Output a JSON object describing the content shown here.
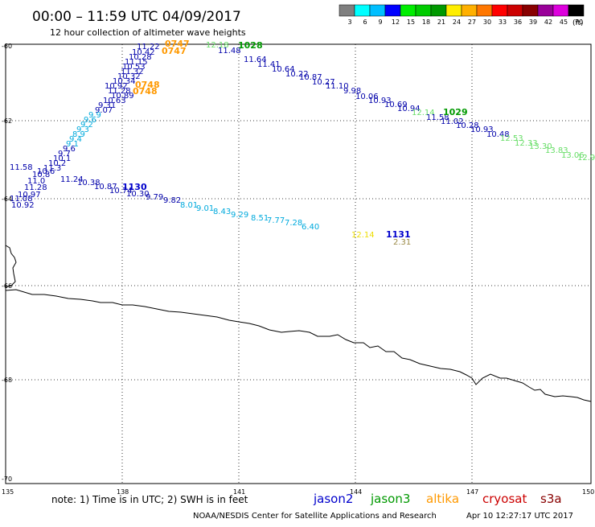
{
  "header": {
    "title": "00:00 – 11:59 UTC 04/09/2017",
    "subtitle": "12 hour collection of altimeter wave heights"
  },
  "colorbar": {
    "unit": "(ft)",
    "colors": [
      "#7f7f7f",
      "#00ffff",
      "#00bfff",
      "#0000ff",
      "#00ee00",
      "#00cc00",
      "#009900",
      "#ffee00",
      "#ffb000",
      "#ff7700",
      "#ff0000",
      "#cc0000",
      "#880000",
      "#990099",
      "#dd00dd",
      "#000000"
    ],
    "labels": [
      "3",
      "6",
      "9",
      "12",
      "15",
      "18",
      "21",
      "24",
      "27",
      "30",
      "33",
      "36",
      "39",
      "42",
      "45",
      "70"
    ]
  },
  "axes": {
    "x_ticks": [
      "135",
      "138",
      "141",
      "144",
      "147",
      "150"
    ],
    "y_ticks": [
      "-60",
      "-62",
      "-64",
      "-66",
      "-68",
      "-70"
    ]
  },
  "map_labels": [
    {
      "text": "0747",
      "sat": "altika"
    },
    {
      "text": "0748",
      "sat": "altika"
    },
    {
      "text": "1028",
      "sat": "jason3"
    },
    {
      "text": "1029",
      "sat": "jason3"
    },
    {
      "text": "1130",
      "sat": "jason2"
    },
    {
      "text": "1131",
      "sat": "jason2"
    }
  ],
  "track_values": {
    "jason3_track_east": [
      "12.18",
      "11.48",
      "11.64",
      "11.41",
      "10.64",
      "10.22",
      "10.87",
      "10.27",
      "11.10",
      "9.98",
      "10.06",
      "10.93",
      "10.69",
      "10.94",
      "12.14",
      "11.58",
      "11.02",
      "10.28",
      "10.93",
      "10.48",
      "12.53",
      "12.33",
      "13.30",
      "13.83",
      "13.06",
      "12.9"
    ],
    "jason2_track_south": [
      "10.38",
      "10.87",
      "10.74",
      "10.30",
      "9.79",
      "9.82",
      "8.01",
      "9.01",
      "8.43",
      "9.29",
      "8.51",
      "7.77",
      "7.28",
      "6.40"
    ],
    "jason2_track_south_extra": [
      "12.14",
      "2.31"
    ],
    "jason2_west_cluster": [
      "11.58",
      "11.24",
      "10.97",
      "11.08",
      "11.28",
      "10.92"
    ],
    "altika_track_upper": [
      "11.22",
      "10.42",
      "10.28",
      "11.15",
      "10.53",
      "11.32",
      "10.32",
      "10.34",
      "10.92",
      "11.28",
      "10.89",
      "10.63",
      "9.31",
      "9.07"
    ]
  },
  "legend": {
    "note": "note: 1) Time is in UTC; 2) SWH is in feet",
    "sats": [
      {
        "name": "jason2",
        "color": "#0000cc"
      },
      {
        "name": "jason3",
        "color": "#009900"
      },
      {
        "name": "altika",
        "color": "#ff9900"
      },
      {
        "name": "cryosat",
        "color": "#cc0000"
      },
      {
        "name": "s3a",
        "color": "#880000"
      }
    ]
  },
  "footer": {
    "credit": "NOAA/NESDIS Center for Satellite Applications and Research",
    "timestamp": "Apr 10 12:27:17 UTC 2017"
  }
}
